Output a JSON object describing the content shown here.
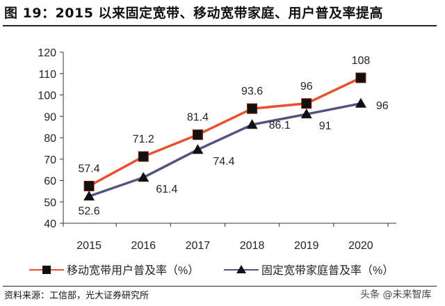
{
  "title": "图 19：2015 以来固定宽带、移动宽带家庭、用户普及率提高",
  "source": "资料来源：工信部，光大证券研究所",
  "watermark": "头条 @未来智库",
  "chart_data": {
    "type": "line",
    "title": "图 19：2015 以来固定宽带、移动宽带家庭、用户普及率提高",
    "xlabel": "",
    "ylabel": "",
    "categories": [
      "2015",
      "2016",
      "2017",
      "2018",
      "2019",
      "2020"
    ],
    "ylim": [
      40,
      120
    ],
    "yticks": [
      40,
      50,
      60,
      70,
      80,
      90,
      100,
      110,
      120
    ],
    "grid": false,
    "legend_position": "bottom",
    "series": [
      {
        "name": "移动宽带用户普及率（%）",
        "values": [
          57.4,
          71.2,
          81.4,
          93.6,
          96,
          108
        ],
        "labels": [
          "57.4",
          "71.2",
          "81.4",
          "93.6",
          "96",
          "108"
        ],
        "color": "#E8502E",
        "marker": "square"
      },
      {
        "name": "固定宽带家庭普及率（%）",
        "values": [
          52.6,
          61.4,
          74.4,
          86.1,
          91,
          96
        ],
        "labels": [
          "52.6",
          "61.4",
          "74.4",
          "86.1",
          "91",
          "96"
        ],
        "color": "#55527F",
        "marker": "triangle"
      }
    ]
  }
}
